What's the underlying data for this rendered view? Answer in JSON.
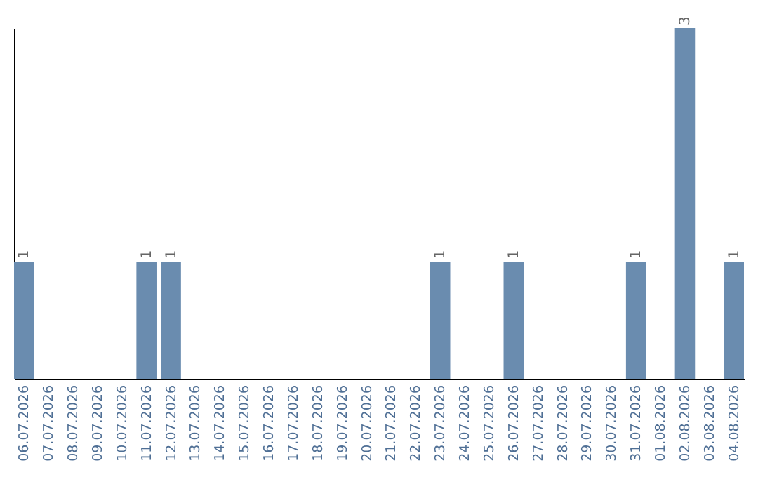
{
  "chart_data": {
    "type": "bar",
    "categories": [
      "06.07.2026",
      "07.07.2026",
      "08.07.2026",
      "09.07.2026",
      "10.07.2026",
      "11.07.2026",
      "12.07.2026",
      "13.07.2026",
      "14.07.2026",
      "15.07.2026",
      "16.07.2026",
      "17.07.2026",
      "18.07.2026",
      "19.07.2026",
      "20.07.2026",
      "21.07.2026",
      "22.07.2026",
      "23.07.2026",
      "24.07.2026",
      "25.07.2026",
      "26.07.2026",
      "27.07.2026",
      "28.07.2026",
      "29.07.2026",
      "30.07.2026",
      "31.07.2026",
      "01.08.2026",
      "02.08.2026",
      "03.08.2026",
      "04.08.2026"
    ],
    "values": [
      1,
      0,
      0,
      0,
      0,
      1,
      1,
      0,
      0,
      0,
      0,
      0,
      0,
      0,
      0,
      0,
      0,
      1,
      0,
      0,
      1,
      0,
      0,
      0,
      0,
      1,
      0,
      3,
      0,
      1
    ],
    "value_labels": [
      "1",
      null,
      null,
      null,
      null,
      "1",
      "1",
      null,
      null,
      null,
      null,
      null,
      null,
      null,
      null,
      null,
      null,
      "1",
      null,
      null,
      "1",
      null,
      null,
      null,
      null,
      "1",
      null,
      "3",
      null,
      "1"
    ],
    "color": "#6a8caf",
    "tick_labels": "x"
  }
}
